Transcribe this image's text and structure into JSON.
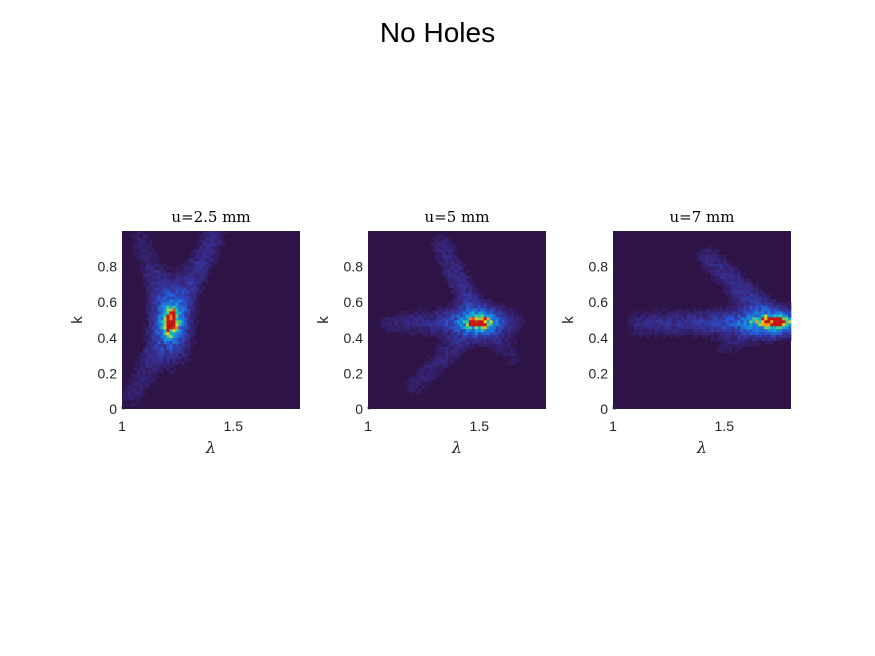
{
  "figure": {
    "title": "No Holes"
  },
  "colors": {
    "background": "#2e1446",
    "low": "#3a2a8a",
    "mid": "#22a8d6",
    "high": "#f0e21c",
    "peak": "#c81414"
  },
  "chart_data": [
    {
      "type": "heatmap",
      "title": "u=2.5 mm",
      "xlabel": "λ",
      "ylabel": "k",
      "xlim": [
        1.0,
        1.8
      ],
      "ylim": [
        0.0,
        1.0
      ],
      "xticks": [
        "1",
        "1.5"
      ],
      "xtick_values": [
        1.0,
        1.5
      ],
      "yticks": [
        "0",
        "0.2",
        "0.4",
        "0.6",
        "0.8"
      ],
      "ytick_values": [
        0.0,
        0.2,
        0.4,
        0.6,
        0.8
      ],
      "colormap": "parula-like",
      "hotspots": [
        {
          "lambda": 1.22,
          "k": 0.49,
          "peak_intensity": 1.0,
          "sigma_lambda": 0.02,
          "sigma_k": 0.05
        }
      ],
      "ridges": [
        {
          "from": [
            1.22,
            0.5
          ],
          "to": [
            1.42,
            0.98
          ],
          "intensity": 0.12
        },
        {
          "from": [
            1.22,
            0.5
          ],
          "to": [
            1.05,
            0.08
          ],
          "intensity": 0.08
        },
        {
          "from": [
            1.22,
            0.5
          ],
          "to": [
            1.08,
            0.95
          ],
          "intensity": 0.07
        }
      ]
    },
    {
      "type": "heatmap",
      "title": "u=5 mm",
      "xlabel": "λ",
      "ylabel": "k",
      "xlim": [
        1.0,
        1.8
      ],
      "ylim": [
        0.0,
        1.0
      ],
      "xticks": [
        "1",
        "1.5"
      ],
      "xtick_values": [
        1.0,
        1.5
      ],
      "yticks": [
        "0",
        "0.2",
        "0.4",
        "0.6",
        "0.8"
      ],
      "ytick_values": [
        0.0,
        0.2,
        0.4,
        0.6,
        0.8
      ],
      "colormap": "parula-like",
      "hotspots": [
        {
          "lambda": 1.5,
          "k": 0.49,
          "peak_intensity": 1.0,
          "sigma_lambda": 0.035,
          "sigma_k": 0.02
        }
      ],
      "ridges": [
        {
          "from": [
            1.5,
            0.49
          ],
          "to": [
            1.1,
            0.48
          ],
          "intensity": 0.09
        },
        {
          "from": [
            1.5,
            0.49
          ],
          "to": [
            1.33,
            0.92
          ],
          "intensity": 0.1
        },
        {
          "from": [
            1.5,
            0.49
          ],
          "to": [
            1.2,
            0.12
          ],
          "intensity": 0.07
        },
        {
          "from": [
            1.5,
            0.49
          ],
          "to": [
            1.65,
            0.3
          ],
          "intensity": 0.06
        }
      ]
    },
    {
      "type": "heatmap",
      "title": "u=7 mm",
      "xlabel": "λ",
      "ylabel": "k",
      "xlim": [
        1.0,
        1.8
      ],
      "ylim": [
        0.0,
        1.0
      ],
      "xticks": [
        "1",
        "1.5"
      ],
      "xtick_values": [
        1.0,
        1.5
      ],
      "yticks": [
        "0",
        "0.2",
        "0.4",
        "0.6",
        "0.8"
      ],
      "ytick_values": [
        0.0,
        0.2,
        0.4,
        0.6,
        0.8
      ],
      "colormap": "parula-like",
      "hotspots": [
        {
          "lambda": 1.72,
          "k": 0.49,
          "peak_intensity": 1.0,
          "sigma_lambda": 0.05,
          "sigma_k": 0.018
        }
      ],
      "ridges": [
        {
          "from": [
            1.72,
            0.49
          ],
          "to": [
            1.12,
            0.48
          ],
          "intensity": 0.13
        },
        {
          "from": [
            1.72,
            0.49
          ],
          "to": [
            1.43,
            0.85
          ],
          "intensity": 0.12
        },
        {
          "from": [
            1.72,
            0.49
          ],
          "to": [
            1.5,
            0.35
          ],
          "intensity": 0.06
        }
      ]
    }
  ]
}
